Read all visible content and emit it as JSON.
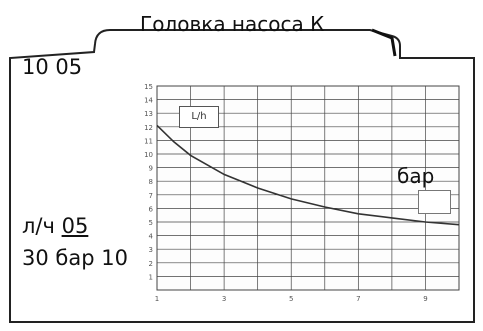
{
  "header": {
    "title": "Головка насоса К",
    "top_left": "10 05"
  },
  "labels": {
    "unit_prefix": "л/ч ",
    "unit_value": "05",
    "bottom": "30 бар 10",
    "right": "бар"
  },
  "colors": {
    "line": "#333333",
    "grid": "#444444",
    "frame": "#222222"
  },
  "chart_data": {
    "type": "line",
    "series": [
      {
        "name": "L/h",
        "x": [
          1,
          1.5,
          2,
          3,
          4,
          5,
          6,
          7,
          8,
          9,
          10
        ],
        "y": [
          12.1,
          10.9,
          9.9,
          8.5,
          7.5,
          6.7,
          6.1,
          5.6,
          5.3,
          5.0,
          4.8
        ]
      }
    ],
    "xlim": [
      1,
      10
    ],
    "ylim": [
      0,
      15
    ],
    "x_ticks": [
      1,
      3,
      5,
      7,
      9
    ],
    "y_ticks": [
      1,
      2,
      3,
      4,
      5,
      6,
      7,
      8,
      9,
      10,
      11,
      12,
      13,
      14,
      15
    ],
    "grid": true
  }
}
